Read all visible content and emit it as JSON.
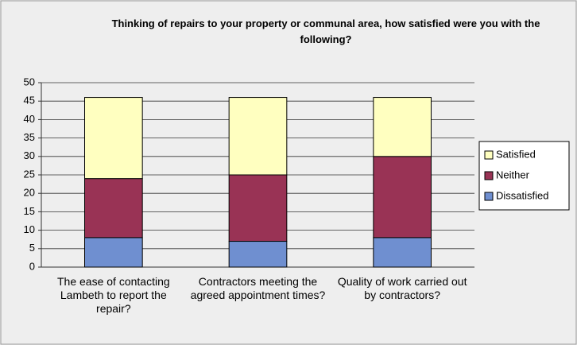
{
  "chart_data": {
    "type": "stacked_bar",
    "title": "Thinking of repairs to your property or communal area, how satisfied were you with the following?",
    "categories": [
      "The ease of contacting Lambeth to report the repair?",
      "Contractors meeting the agreed appointment times?",
      "Quality of work carried out by contractors?"
    ],
    "series": [
      {
        "name": "Dissatisfied",
        "color": "#6f8fd0",
        "values": [
          8,
          7,
          8
        ]
      },
      {
        "name": "Neither",
        "color": "#993355",
        "values": [
          16,
          18,
          22
        ]
      },
      {
        "name": "Satisfied",
        "color": "#ffffc0",
        "values": [
          22,
          21,
          16
        ]
      }
    ],
    "ylim": [
      0,
      50
    ],
    "yticks": [
      0,
      5,
      10,
      15,
      20,
      25,
      30,
      35,
      40,
      45,
      50
    ],
    "grid": true,
    "legend": "right"
  }
}
